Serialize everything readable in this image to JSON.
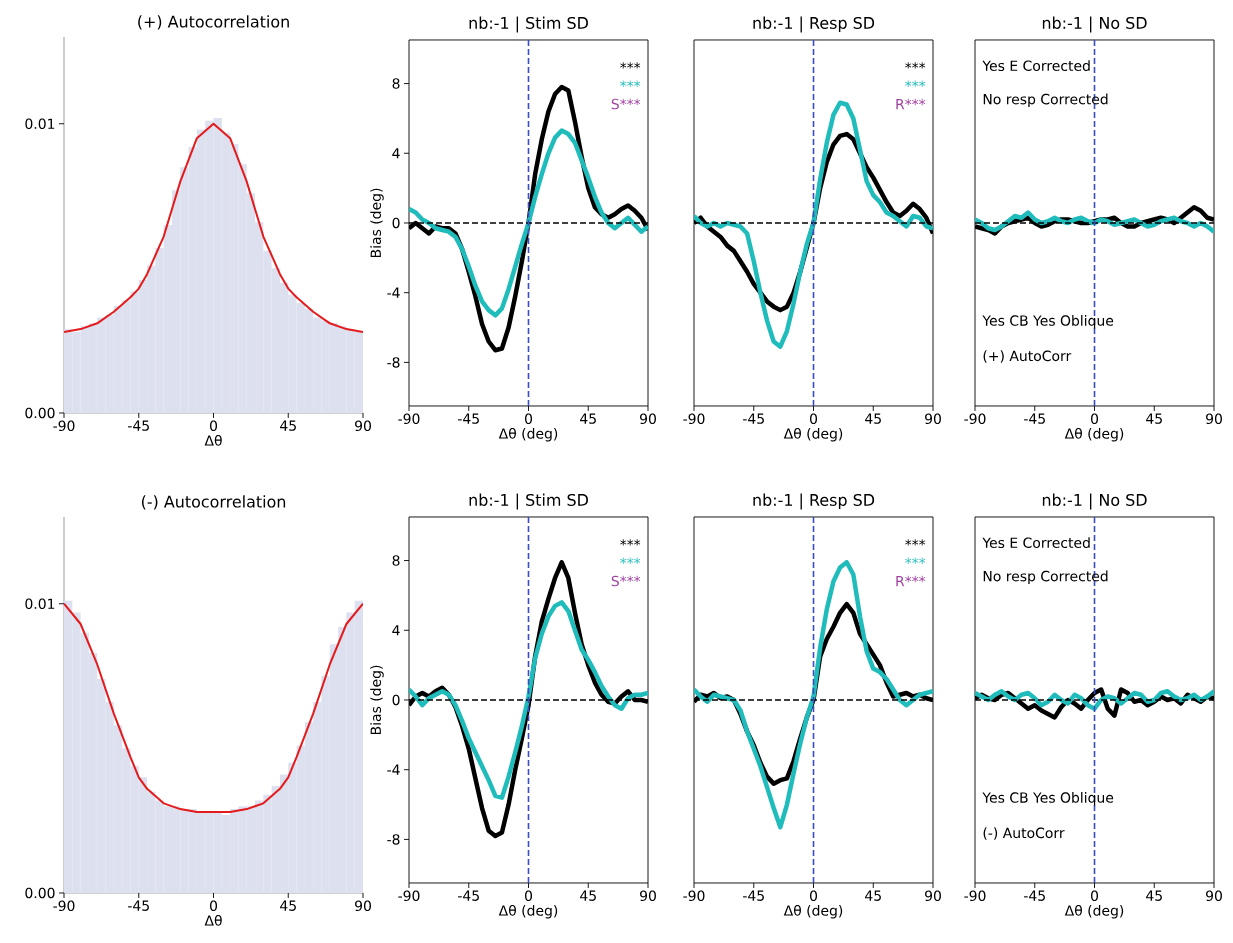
{
  "chart_data": [
    {
      "type": "histogram",
      "title": "(+) Autocorrelation",
      "xlabel": "Δθ",
      "color": "#dde0ef",
      "bins": [
        -90,
        -85,
        -80,
        -75,
        -70,
        -65,
        -60,
        -55,
        -50,
        -45,
        -40,
        -35,
        -30,
        -25,
        -20,
        -15,
        -10,
        -5,
        0,
        5,
        10,
        15,
        20,
        25,
        30,
        35,
        40,
        45,
        50,
        55,
        60,
        65,
        70,
        75,
        80,
        85,
        90
      ],
      "values": [
        0.0029,
        0.0028,
        0.003,
        0.0031,
        0.0033,
        0.0034,
        0.0037,
        0.0039,
        0.0042,
        0.0046,
        0.0051,
        0.0057,
        0.0065,
        0.0077,
        0.0085,
        0.0092,
        0.0098,
        0.0101,
        0.0102,
        0.0097,
        0.0093,
        0.0086,
        0.0076,
        0.0066,
        0.0056,
        0.005,
        0.0045,
        0.0041,
        0.0038,
        0.0036,
        0.0033,
        0.0032,
        0.0031,
        0.003,
        0.0029,
        0.0028
      ],
      "series": [
        {
          "type": "line",
          "color": "#e41a1c",
          "x": [
            -90,
            -80,
            -70,
            -60,
            -50,
            -45,
            -40,
            -30,
            -20,
            -10,
            0,
            10,
            20,
            30,
            40,
            45,
            50,
            60,
            70,
            80,
            90
          ],
          "values": [
            0.0028,
            0.0029,
            0.0031,
            0.0035,
            0.004,
            0.0043,
            0.0048,
            0.0061,
            0.008,
            0.0095,
            0.01,
            0.0095,
            0.008,
            0.0061,
            0.0048,
            0.0043,
            0.004,
            0.0035,
            0.0031,
            0.0029,
            0.0028
          ]
        }
      ],
      "xlim": [
        -90,
        90
      ],
      "ylim": [
        0,
        0.013
      ],
      "xticks": [
        -90,
        -45,
        0,
        45,
        90
      ],
      "yticks": [
        {
          "value": 0,
          "label": "0.00"
        },
        0.01
      ]
    },
    {
      "type": "line",
      "title": "nb:-1 | Stim SD",
      "xlabel": "Δθ (deg)",
      "ylabel": "Bias (deg)",
      "x": [
        -90,
        -85,
        -80,
        -75,
        -70,
        -65,
        -60,
        -55,
        -50,
        -45,
        -40,
        -35,
        -30,
        -25,
        -20,
        -15,
        -10,
        -5,
        0,
        5,
        10,
        15,
        20,
        25,
        30,
        35,
        40,
        45,
        50,
        55,
        60,
        65,
        70,
        75,
        80,
        85,
        90
      ],
      "series": [
        {
          "color": "#000000",
          "values": [
            -0.3,
            0,
            -0.3,
            -0.6,
            -0.2,
            -0.3,
            -0.3,
            -0.6,
            -1.5,
            -2.8,
            -4.2,
            -5.8,
            -6.8,
            -7.3,
            -7.2,
            -6.0,
            -4.2,
            -2.2,
            0,
            2.8,
            4.8,
            6.4,
            7.4,
            7.8,
            7.6,
            5.8,
            3.8,
            2.0,
            0.9,
            0.5,
            0.3,
            0.5,
            0.8,
            1.0,
            0.7,
            0.3,
            -0.4
          ]
        },
        {
          "color": "#20bcbc",
          "values": [
            0.8,
            0.6,
            0.2,
            0.0,
            -0.3,
            -0.4,
            -0.5,
            -0.8,
            -1.5,
            -2.5,
            -3.6,
            -4.5,
            -5.0,
            -5.3,
            -4.9,
            -3.8,
            -2.5,
            -1.2,
            0,
            1.5,
            2.8,
            4.0,
            4.9,
            5.3,
            5.1,
            4.6,
            3.6,
            2.6,
            1.5,
            0.6,
            0.0,
            -0.3,
            0.0,
            0.3,
            -0.1,
            -0.5,
            -0.2
          ]
        }
      ],
      "annotations": [
        "***",
        "***",
        "S***"
      ],
      "ref_lines": [
        {
          "axis": "y",
          "value": 0,
          "color": "#000000",
          "line_style": "dashed"
        },
        {
          "axis": "x",
          "value": 0,
          "color": "#3b4cc0",
          "line_style": "dashed"
        }
      ],
      "xlim": [
        -90,
        90
      ],
      "ylim": [
        -10.5,
        10.5
      ],
      "xticks": [
        -90,
        -45,
        0,
        45,
        90
      ],
      "yticks": [
        -8,
        -4,
        0,
        4,
        8
      ]
    },
    {
      "type": "line",
      "title": "nb:-1 | Resp SD",
      "xlabel": "Δθ (deg)",
      "x": [
        -90,
        -85,
        -80,
        -75,
        -70,
        -65,
        -60,
        -55,
        -50,
        -45,
        -40,
        -35,
        -30,
        -25,
        -20,
        -15,
        -10,
        -5,
        0,
        5,
        10,
        15,
        20,
        25,
        30,
        35,
        40,
        45,
        50,
        55,
        60,
        65,
        70,
        75,
        80,
        85,
        90
      ],
      "series": [
        {
          "color": "#000000",
          "values": [
            0.0,
            0.3,
            -0.2,
            -0.5,
            -0.8,
            -1.3,
            -1.6,
            -2.2,
            -2.8,
            -3.5,
            -4.0,
            -4.5,
            -4.8,
            -5.0,
            -4.8,
            -4.0,
            -2.8,
            -1.4,
            0,
            2.0,
            3.5,
            4.5,
            5.0,
            5.1,
            4.8,
            4.0,
            3.2,
            2.6,
            1.9,
            1.2,
            0.6,
            0.4,
            0.7,
            1.1,
            0.8,
            0.3,
            -0.6
          ]
        },
        {
          "color": "#20bcbc",
          "values": [
            0.4,
            0.0,
            -0.2,
            0.0,
            -0.2,
            0.0,
            -0.1,
            -0.2,
            -0.6,
            -2.2,
            -4.0,
            -5.6,
            -6.8,
            -7.1,
            -6.2,
            -4.6,
            -2.8,
            -1.2,
            0,
            2.5,
            4.6,
            6.2,
            6.9,
            6.8,
            6.0,
            4.2,
            2.4,
            1.6,
            1.2,
            0.6,
            0.4,
            0.1,
            -0.2,
            0.4,
            0.3,
            -0.2,
            -0.3
          ]
        }
      ],
      "annotations": [
        "***",
        "***",
        "R***"
      ],
      "ref_lines": [
        {
          "axis": "y",
          "value": 0,
          "color": "#000000",
          "line_style": "dashed"
        },
        {
          "axis": "x",
          "value": 0,
          "color": "#3b4cc0",
          "line_style": "dashed"
        }
      ],
      "xlim": [
        -90,
        90
      ],
      "ylim": [
        -10.5,
        10.5
      ],
      "xticks": [
        -90,
        -45,
        0,
        45,
        90
      ],
      "tick_labels": "x"
    },
    {
      "type": "line",
      "title": "nb:-1 | No SD",
      "xlabel": "Δθ (deg)",
      "x": [
        -90,
        -85,
        -80,
        -75,
        -70,
        -65,
        -60,
        -55,
        -50,
        -45,
        -40,
        -35,
        -30,
        -25,
        -20,
        -15,
        -10,
        -5,
        0,
        5,
        10,
        15,
        20,
        25,
        30,
        35,
        40,
        45,
        50,
        55,
        60,
        65,
        70,
        75,
        80,
        85,
        90
      ],
      "series": [
        {
          "color": "#000000",
          "values": [
            -0.2,
            -0.3,
            -0.4,
            -0.6,
            -0.2,
            0.0,
            0.1,
            0.2,
            0.3,
            0.0,
            -0.2,
            -0.1,
            0.1,
            0.2,
            0.2,
            0.1,
            0.0,
            0.0,
            0.1,
            0.2,
            0.2,
            0.3,
            0.0,
            -0.2,
            -0.2,
            0.0,
            0.1,
            0.2,
            0.3,
            0.2,
            0.0,
            0.3,
            0.6,
            0.9,
            0.7,
            0.3,
            0.2
          ]
        },
        {
          "color": "#20bcbc",
          "values": [
            0.2,
            0.0,
            -0.3,
            -0.4,
            -0.2,
            0.1,
            0.4,
            0.3,
            0.6,
            0.2,
            0.0,
            0.1,
            0.3,
            0.1,
            0.0,
            0.2,
            0.3,
            0.1,
            0.0,
            0.2,
            0.1,
            -0.1,
            0.0,
            0.1,
            0.2,
            0.0,
            -0.2,
            -0.1,
            0.1,
            0.2,
            0.3,
            0.1,
            0.0,
            -0.2,
            0.0,
            -0.2,
            -0.5
          ]
        }
      ],
      "annotations": [
        "Yes E Corrected",
        "No resp Corrected",
        "Yes CB Yes Oblique",
        "(+) AutoCorr"
      ],
      "ref_lines": [
        {
          "axis": "y",
          "value": 0,
          "color": "#000000",
          "line_style": "dashed"
        },
        {
          "axis": "x",
          "value": 0,
          "color": "#3b4cc0",
          "line_style": "dashed"
        }
      ],
      "xlim": [
        -90,
        90
      ],
      "ylim": [
        -10.5,
        10.5
      ],
      "xticks": [
        -90,
        -45,
        0,
        45,
        90
      ],
      "tick_labels": "x"
    },
    {
      "type": "histogram",
      "title": "(-) Autocorrelation",
      "xlabel": "Δθ",
      "color": "#dde0ef",
      "bins": [
        -90,
        -85,
        -80,
        -75,
        -70,
        -65,
        -60,
        -55,
        -50,
        -45,
        -40,
        -35,
        -30,
        -25,
        -20,
        -15,
        -10,
        -5,
        0,
        5,
        10,
        15,
        20,
        25,
        30,
        35,
        40,
        45,
        50,
        55,
        60,
        65,
        70,
        75,
        80,
        85,
        90
      ],
      "values": [
        0.0101,
        0.0097,
        0.009,
        0.0083,
        0.0074,
        0.0066,
        0.0058,
        0.005,
        0.0044,
        0.004,
        0.0035,
        0.0032,
        0.003,
        0.003,
        0.0029,
        0.0029,
        0.0028,
        0.0028,
        0.0028,
        0.0027,
        0.0029,
        0.003,
        0.003,
        0.0032,
        0.0034,
        0.0037,
        0.0041,
        0.0045,
        0.0051,
        0.0059,
        0.0066,
        0.0075,
        0.0086,
        0.0092,
        0.0097,
        0.0101
      ],
      "series": [
        {
          "type": "line",
          "color": "#e41a1c",
          "x": [
            -90,
            -80,
            -70,
            -60,
            -50,
            -45,
            -40,
            -30,
            -20,
            -10,
            0,
            10,
            20,
            30,
            40,
            45,
            50,
            60,
            70,
            80,
            90
          ],
          "values": [
            0.01,
            0.0093,
            0.0079,
            0.0062,
            0.0047,
            0.004,
            0.0036,
            0.0031,
            0.0029,
            0.0028,
            0.0028,
            0.0028,
            0.0029,
            0.0031,
            0.0036,
            0.004,
            0.0047,
            0.0062,
            0.0079,
            0.0093,
            0.01
          ]
        }
      ],
      "xlim": [
        -90,
        90
      ],
      "ylim": [
        0,
        0.013
      ],
      "xticks": [
        -90,
        -45,
        0,
        45,
        90
      ],
      "yticks": [
        {
          "value": 0,
          "label": "0.00"
        },
        0.01
      ]
    },
    {
      "type": "line",
      "title": "nb:-1 | Stim SD",
      "xlabel": "Δθ (deg)",
      "ylabel": "Bias (deg)",
      "x": [
        -90,
        -85,
        -80,
        -75,
        -70,
        -65,
        -60,
        -55,
        -50,
        -45,
        -40,
        -35,
        -30,
        -25,
        -20,
        -15,
        -10,
        -5,
        0,
        5,
        10,
        15,
        20,
        25,
        30,
        35,
        40,
        45,
        50,
        55,
        60,
        65,
        70,
        75,
        80,
        85,
        90
      ],
      "series": [
        {
          "color": "#000000",
          "values": [
            -0.3,
            0.2,
            0.4,
            0.2,
            0.5,
            0.7,
            0.3,
            -0.4,
            -1.5,
            -2.8,
            -4.5,
            -6.2,
            -7.5,
            -7.8,
            -7.6,
            -6.0,
            -4.0,
            -2.2,
            -0.3,
            2.5,
            4.5,
            5.8,
            7.0,
            7.9,
            7.0,
            5.0,
            3.2,
            2.0,
            1.0,
            0.3,
            -0.1,
            -0.2,
            0.2,
            0.5,
            0.0,
            0.0,
            -0.1
          ]
        },
        {
          "color": "#20bcbc",
          "values": [
            0.6,
            0.2,
            -0.3,
            0.1,
            0.3,
            0.5,
            0.3,
            -0.3,
            -1.2,
            -2.2,
            -3.0,
            -3.8,
            -4.6,
            -5.5,
            -5.6,
            -4.4,
            -3.0,
            -1.5,
            0.2,
            2.4,
            3.8,
            4.8,
            5.4,
            5.6,
            5.1,
            4.0,
            2.9,
            2.3,
            1.6,
            0.8,
            0.2,
            -0.3,
            -0.5,
            0.1,
            0.3,
            0.3,
            0.4
          ]
        }
      ],
      "annotations": [
        "***",
        "***",
        "S***"
      ],
      "ref_lines": [
        {
          "axis": "y",
          "value": 0,
          "color": "#000000",
          "line_style": "dashed"
        },
        {
          "axis": "x",
          "value": 0,
          "color": "#3b4cc0",
          "line_style": "dashed"
        }
      ],
      "xlim": [
        -90,
        90
      ],
      "ylim": [
        -10.5,
        10.5
      ],
      "xticks": [
        -90,
        -45,
        0,
        45,
        90
      ],
      "yticks": [
        -8,
        -4,
        0,
        4,
        8
      ]
    },
    {
      "type": "line",
      "title": "nb:-1 | Resp SD",
      "xlabel": "Δθ (deg)",
      "x": [
        -90,
        -85,
        -80,
        -75,
        -70,
        -65,
        -60,
        -55,
        -50,
        -45,
        -40,
        -35,
        -30,
        -25,
        -20,
        -15,
        -10,
        -5,
        0,
        5,
        10,
        15,
        20,
        25,
        30,
        35,
        40,
        45,
        50,
        55,
        60,
        65,
        70,
        75,
        80,
        85,
        90
      ],
      "series": [
        {
          "color": "#000000",
          "values": [
            -0.1,
            0.3,
            0.2,
            0.4,
            0.1,
            0.2,
            0.0,
            -0.8,
            -1.8,
            -2.6,
            -3.6,
            -4.4,
            -4.8,
            -4.6,
            -4.5,
            -3.5,
            -2.2,
            -1.0,
            0.0,
            2.5,
            3.5,
            4.2,
            5.0,
            5.5,
            5.0,
            3.8,
            3.2,
            2.6,
            2.0,
            1.0,
            0.2,
            0.3,
            0.4,
            0.2,
            0.3,
            0.1,
            0.0
          ]
        },
        {
          "color": "#20bcbc",
          "values": [
            0.6,
            0.2,
            -0.1,
            0.3,
            0.2,
            0.1,
            0.0,
            -0.6,
            -1.8,
            -2.8,
            -3.8,
            -5.0,
            -6.2,
            -7.3,
            -6.0,
            -4.2,
            -2.5,
            -1.0,
            0.2,
            3.0,
            5.2,
            6.8,
            7.6,
            7.9,
            7.2,
            4.8,
            2.8,
            1.8,
            1.6,
            1.2,
            0.6,
            0.0,
            -0.3,
            0.0,
            0.3,
            0.4,
            0.5
          ]
        }
      ],
      "annotations": [
        "***",
        "***",
        "R***"
      ],
      "ref_lines": [
        {
          "axis": "y",
          "value": 0,
          "color": "#000000",
          "line_style": "dashed"
        },
        {
          "axis": "x",
          "value": 0,
          "color": "#3b4cc0",
          "line_style": "dashed"
        }
      ],
      "xlim": [
        -90,
        90
      ],
      "ylim": [
        -10.5,
        10.5
      ],
      "xticks": [
        -90,
        -45,
        0,
        45,
        90
      ],
      "tick_labels": "x"
    },
    {
      "type": "line",
      "title": "nb:-1 | No SD",
      "xlabel": "Δθ (deg)",
      "x": [
        -90,
        -85,
        -80,
        -75,
        -70,
        -65,
        -60,
        -55,
        -50,
        -45,
        -40,
        -35,
        -30,
        -25,
        -20,
        -15,
        -10,
        -5,
        0,
        5,
        10,
        15,
        20,
        25,
        30,
        35,
        40,
        45,
        50,
        55,
        60,
        65,
        70,
        75,
        80,
        85,
        90
      ],
      "series": [
        {
          "color": "#000000",
          "values": [
            0.1,
            0.3,
            0.1,
            0.0,
            0.3,
            0.4,
            0.1,
            -0.2,
            -0.5,
            -0.3,
            -0.6,
            -0.8,
            -1.0,
            -0.4,
            0.0,
            -0.2,
            -0.5,
            0.0,
            0.4,
            0.6,
            -0.5,
            -0.9,
            0.6,
            0.4,
            -0.1,
            0.0,
            -0.3,
            -0.1,
            0.2,
            0.0,
            0.1,
            -0.2,
            0.3,
            0.1,
            -0.1,
            0.2,
            0.1
          ]
        },
        {
          "color": "#20bcbc",
          "values": [
            0.4,
            0.2,
            0.0,
            0.3,
            0.5,
            0.2,
            0.0,
            0.3,
            0.4,
            0.1,
            -0.3,
            -0.1,
            0.3,
            0.0,
            -0.2,
            0.3,
            0.1,
            -0.3,
            -0.5,
            0.0,
            0.2,
            0.1,
            -0.2,
            0.1,
            0.4,
            0.3,
            -0.1,
            0.0,
            0.4,
            0.5,
            0.2,
            0.0,
            0.1,
            0.3,
            0.0,
            0.2,
            0.5
          ]
        }
      ],
      "annotations": [
        "Yes E Corrected",
        "No resp Corrected",
        "Yes CB Yes Oblique",
        "(-) AutoCorr"
      ],
      "ref_lines": [
        {
          "axis": "y",
          "value": 0,
          "color": "#000000",
          "line_style": "dashed"
        },
        {
          "axis": "x",
          "value": 0,
          "color": "#3b4cc0",
          "line_style": "dashed"
        }
      ],
      "xlim": [
        -90,
        90
      ],
      "ylim": [
        -10.5,
        10.5
      ],
      "xticks": [
        -90,
        -45,
        0,
        45,
        90
      ],
      "tick_labels": "x"
    }
  ]
}
